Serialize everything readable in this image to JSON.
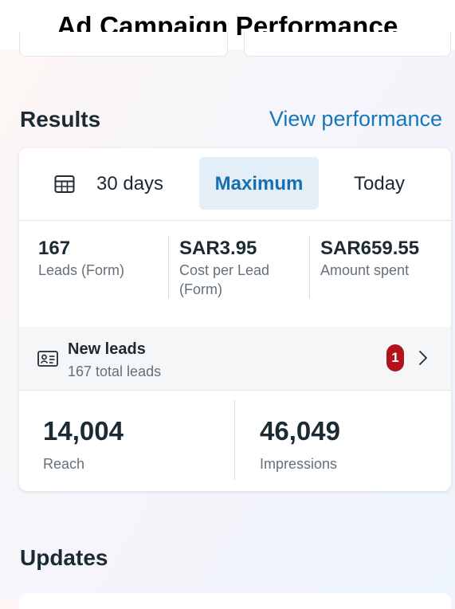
{
  "page_title": "Ad Campaign Performance",
  "results": {
    "heading": "Results",
    "view_link": "View performance",
    "tabs": [
      {
        "label": "30 days",
        "icon": "calendar-icon"
      },
      {
        "label": "Maximum",
        "selected": true
      },
      {
        "label": "Today"
      }
    ],
    "metrics": [
      {
        "value": "167",
        "label": "Leads (Form)"
      },
      {
        "value": "SAR3.95",
        "label": "Cost per Lead (Form)"
      },
      {
        "value": "SAR659.55",
        "label": "Amount spent"
      }
    ],
    "leads": {
      "icon": "contact-card-icon",
      "title": "New leads",
      "subtitle": "167 total leads",
      "badge": "1"
    },
    "summary": [
      {
        "value": "14,004",
        "label": "Reach"
      },
      {
        "value": "46,049",
        "label": "Impressions"
      }
    ]
  },
  "updates": {
    "heading": "Updates"
  },
  "colors": {
    "accent": "#1877b9",
    "selected_tab_bg": "#e4eef7",
    "badge": "#b3121b"
  }
}
